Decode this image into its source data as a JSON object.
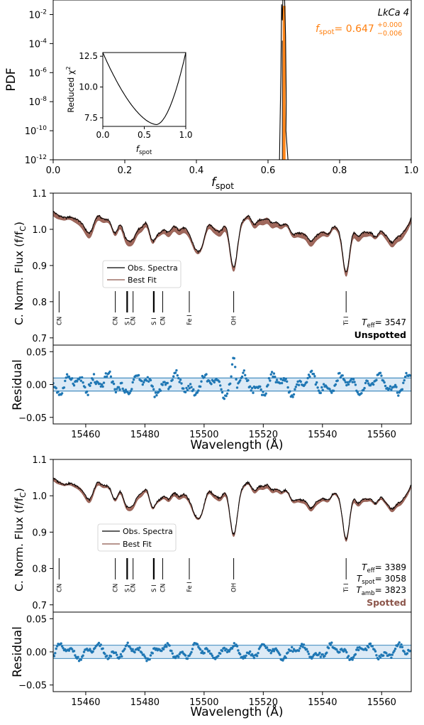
{
  "colors": {
    "observed": "#000000",
    "model_fill": "#a0685c",
    "model_line": "#8c564b",
    "posterior": "#ff7f0e",
    "residual": "#1f77b4",
    "band": "#d6e6f4",
    "spotted_label": "#8c564b"
  },
  "chart_data": [
    {
      "id": "fspot-pdf",
      "type": "line",
      "xlabel": "f",
      "xlabel_sub": "spot",
      "ylabel": "PDF",
      "xlim": [
        0,
        1
      ],
      "ylim_log10": [
        -12,
        -1
      ],
      "log_y": true,
      "x_ticks": [
        "0.0",
        "0.2",
        "0.4",
        "0.6",
        "0.8",
        "1.0"
      ],
      "y_tick_exponents": [
        "-2",
        "-4",
        "-6",
        "-8",
        "-10",
        "-12"
      ],
      "y_tick_base": "10",
      "object_name": "LkCa 4",
      "fspot_label": {
        "name": "f",
        "sub": "spot",
        "equals": "= 0.647",
        "sup": "+0.000",
        "sub_err": "−0.006"
      },
      "pdf_peak": {
        "x_min": 0.632,
        "x_max": 0.656,
        "center": 0.647
      },
      "inset": {
        "type": "line",
        "xlabel": "f",
        "xlabel_sub": "spot",
        "ylabel": "Reduced χ",
        "ylabel_sup": "2",
        "xlim": [
          0,
          1
        ],
        "ylim": [
          6.8,
          12.8
        ],
        "x_ticks": [
          "0.0",
          "0.5",
          "1.0"
        ],
        "y_ticks": [
          "7.5",
          "10.0",
          "12.5"
        ],
        "curve": {
          "x_min": 0.647,
          "y_min": 6.95,
          "y_at_0": 12.8,
          "y_at_1": 12.8
        }
      }
    },
    {
      "id": "unspotted-spectrum",
      "type": "line",
      "ylabel": "C. Norm. Flux (f/f",
      "ylabel_sub": "C",
      "ylim": [
        0.68,
        1.1
      ],
      "xlim": [
        15449,
        15570
      ],
      "y_ticks": [
        "0.7",
        "0.8",
        "0.9",
        "1.0",
        "1.1"
      ],
      "series": [
        {
          "name": "Obs. Spectra"
        },
        {
          "name": "Best Fit"
        }
      ],
      "line_ids": [
        {
          "label": "CN",
          "x": 15451
        },
        {
          "label": "CN",
          "x": 15470
        },
        {
          "label": "S I",
          "x": 15474
        },
        {
          "label": "CN",
          "x": 15476
        },
        {
          "label": "S I",
          "x": 15483
        },
        {
          "label": "CN",
          "x": 15486
        },
        {
          "label": "Fe I",
          "x": 15495
        },
        {
          "label": "OH",
          "x": 15510
        },
        {
          "label": "Ti I",
          "x": 15548
        }
      ],
      "params": [
        {
          "name": "T",
          "sub": "eff",
          "value": "= 3547"
        }
      ],
      "model_label": "Unspotted"
    },
    {
      "id": "unspotted-residual",
      "type": "scatter",
      "ylabel": "Residual",
      "xlabel": "Wavelength (Å)",
      "xlim": [
        15449,
        15570
      ],
      "ylim": [
        -0.06,
        0.06
      ],
      "band": [
        -0.01,
        0.01
      ],
      "x_ticks": [
        "15460",
        "15480",
        "15500",
        "15520",
        "15540",
        "15560"
      ],
      "y_ticks": [
        "0.05",
        "0.00",
        "−0.05"
      ],
      "amplitude": 0.015
    },
    {
      "id": "spotted-spectrum",
      "type": "line",
      "ylabel": "C. Norm. Flux (f/f",
      "ylabel_sub": "C",
      "ylim": [
        0.68,
        1.1
      ],
      "xlim": [
        15449,
        15570
      ],
      "y_ticks": [
        "0.7",
        "0.8",
        "0.9",
        "1.0",
        "1.1"
      ],
      "series": [
        {
          "name": "Obs. Spectra"
        },
        {
          "name": "Best Fit"
        }
      ],
      "line_ids": [
        {
          "label": "CN",
          "x": 15451
        },
        {
          "label": "CN",
          "x": 15470
        },
        {
          "label": "S I",
          "x": 15474
        },
        {
          "label": "CN",
          "x": 15476
        },
        {
          "label": "S I",
          "x": 15483
        },
        {
          "label": "CN",
          "x": 15486
        },
        {
          "label": "Fe I",
          "x": 15495
        },
        {
          "label": "OH",
          "x": 15510
        },
        {
          "label": "Ti I",
          "x": 15548
        }
      ],
      "params": [
        {
          "name": "T",
          "sub": "eff",
          "value": "= 3389"
        },
        {
          "name": "T",
          "sub": "spot",
          "value": "= 3058"
        },
        {
          "name": "T",
          "sub": "amb",
          "value": "= 3823"
        }
      ],
      "model_label": "Spotted"
    },
    {
      "id": "spotted-residual",
      "type": "scatter",
      "ylabel": "Residual",
      "xlabel": "Wavelength (Å)",
      "xlim": [
        15449,
        15570
      ],
      "ylim": [
        -0.06,
        0.06
      ],
      "band": [
        -0.01,
        0.01
      ],
      "x_ticks": [
        "15460",
        "15480",
        "15500",
        "15520",
        "15540",
        "15560"
      ],
      "y_ticks": [
        "0.05",
        "0.00",
        "−0.05"
      ],
      "amplitude": 0.01
    }
  ]
}
